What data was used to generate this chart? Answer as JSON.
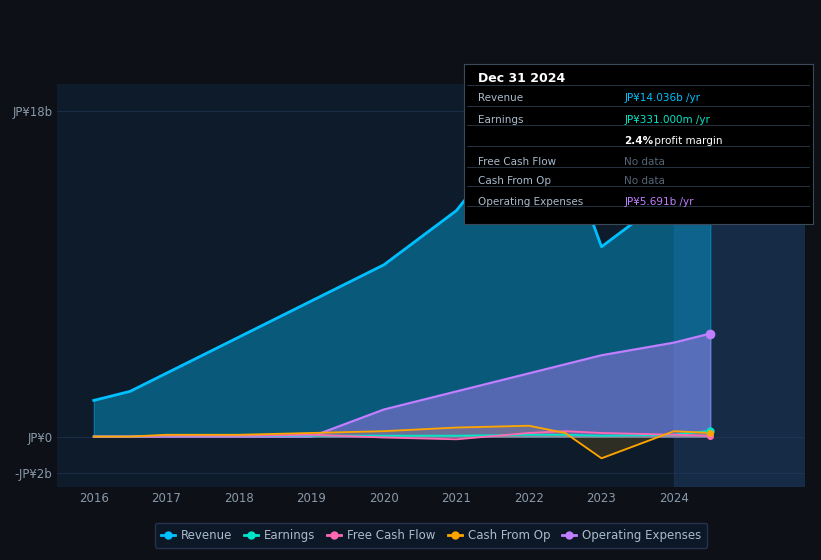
{
  "background_color": "#0d1117",
  "plot_bg_color": "#0d1b2a",
  "years": [
    2016,
    2016.5,
    2017,
    2018,
    2019,
    2020,
    2021,
    2022,
    2022.5,
    2023,
    2024,
    2024.5
  ],
  "revenue": [
    2.0,
    2.5,
    3.5,
    5.5,
    7.5,
    9.5,
    12.5,
    17.5,
    16.0,
    10.5,
    13.5,
    14.0
  ],
  "earnings": [
    0.0,
    0.0,
    0.05,
    0.05,
    0.05,
    0.05,
    0.05,
    0.1,
    0.1,
    0.05,
    0.1,
    0.33
  ],
  "free_cash_flow": [
    0.0,
    0.0,
    0.05,
    0.05,
    0.1,
    -0.05,
    -0.15,
    0.2,
    0.3,
    0.2,
    0.1,
    0.05
  ],
  "cash_from_op": [
    0.0,
    0.0,
    0.1,
    0.1,
    0.2,
    0.3,
    0.5,
    0.6,
    0.2,
    -1.2,
    0.3,
    0.2
  ],
  "operating_expenses": [
    0.0,
    0.0,
    0.0,
    0.0,
    0.0,
    1.5,
    2.5,
    3.5,
    4.0,
    4.5,
    5.2,
    5.7
  ],
  "revenue_color": "#00bfff",
  "earnings_color": "#00e5c8",
  "free_cash_flow_color": "#ff69b4",
  "cash_from_op_color": "#ffa500",
  "operating_expenses_color": "#bf7fff",
  "grid_color": "#1e3050",
  "highlight_color": "#1a2a4a",
  "legend_bg": "#0d1b2a",
  "legend_border": "#2a3a5a",
  "ytick_labels": [
    "JP¥18b",
    "JP¥0",
    "-JP¥2b"
  ],
  "ytick_values": [
    18,
    0,
    -2
  ],
  "ylim_min": -2.8,
  "ylim_max": 19.5,
  "xlim_min": 2015.5,
  "xlim_max": 2025.8,
  "xtick_positions": [
    2016,
    2017,
    2018,
    2019,
    2020,
    2021,
    2022,
    2023,
    2024
  ],
  "info_rows": [
    {
      "label": "Revenue",
      "value": "JP¥14.036b /yr",
      "val_color": "#00bfff",
      "no_data": false
    },
    {
      "label": "Earnings",
      "value": "JP¥331.000m /yr",
      "val_color": "#00e5c8",
      "no_data": false
    },
    {
      "label": "",
      "value": "2.4% profit margin",
      "val_color": "white",
      "no_data": false,
      "bold_prefix": "2.4%"
    },
    {
      "label": "Free Cash Flow",
      "value": "No data",
      "val_color": "#556677",
      "no_data": true
    },
    {
      "label": "Cash From Op",
      "value": "No data",
      "val_color": "#556677",
      "no_data": true
    },
    {
      "label": "Operating Expenses",
      "value": "JP¥5.691b /yr",
      "val_color": "#bf7fff",
      "no_data": false
    }
  ]
}
